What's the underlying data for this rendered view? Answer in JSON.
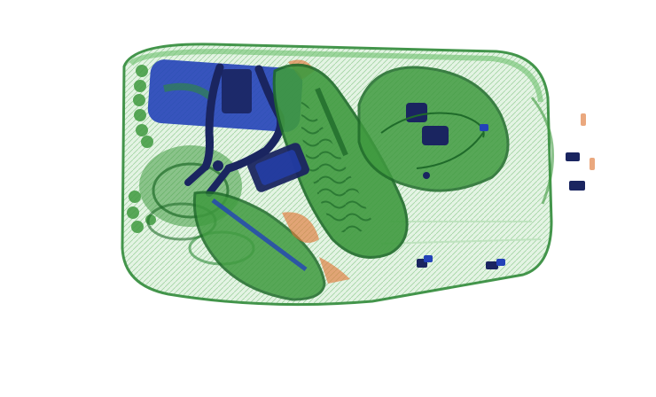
{
  "scene": {
    "kind": "xray-baggage-scan",
    "background": "#ffffff",
    "palette": {
      "organic_green": "#3f9a3f",
      "organic_light": "#7cc47c",
      "organic_dark": "#1f6b2a",
      "metal_blue": "#2342b8",
      "metal_dark": "#1a2560",
      "inorganic_orange": "#e07a3a"
    },
    "objects": [
      {
        "id": "bag-outline",
        "material": "organic"
      },
      {
        "id": "blue-case",
        "material": "metal"
      },
      {
        "id": "pliers",
        "material": "metal"
      },
      {
        "id": "shoe-left",
        "material": "organic"
      },
      {
        "id": "shoe-sole-right",
        "material": "organic"
      },
      {
        "id": "pouch-with-electronics",
        "material": "organic"
      },
      {
        "id": "phone",
        "material": "metal"
      },
      {
        "id": "scarf-coil",
        "material": "organic"
      },
      {
        "id": "zipper-pulls",
        "material": "metal"
      }
    ]
  }
}
